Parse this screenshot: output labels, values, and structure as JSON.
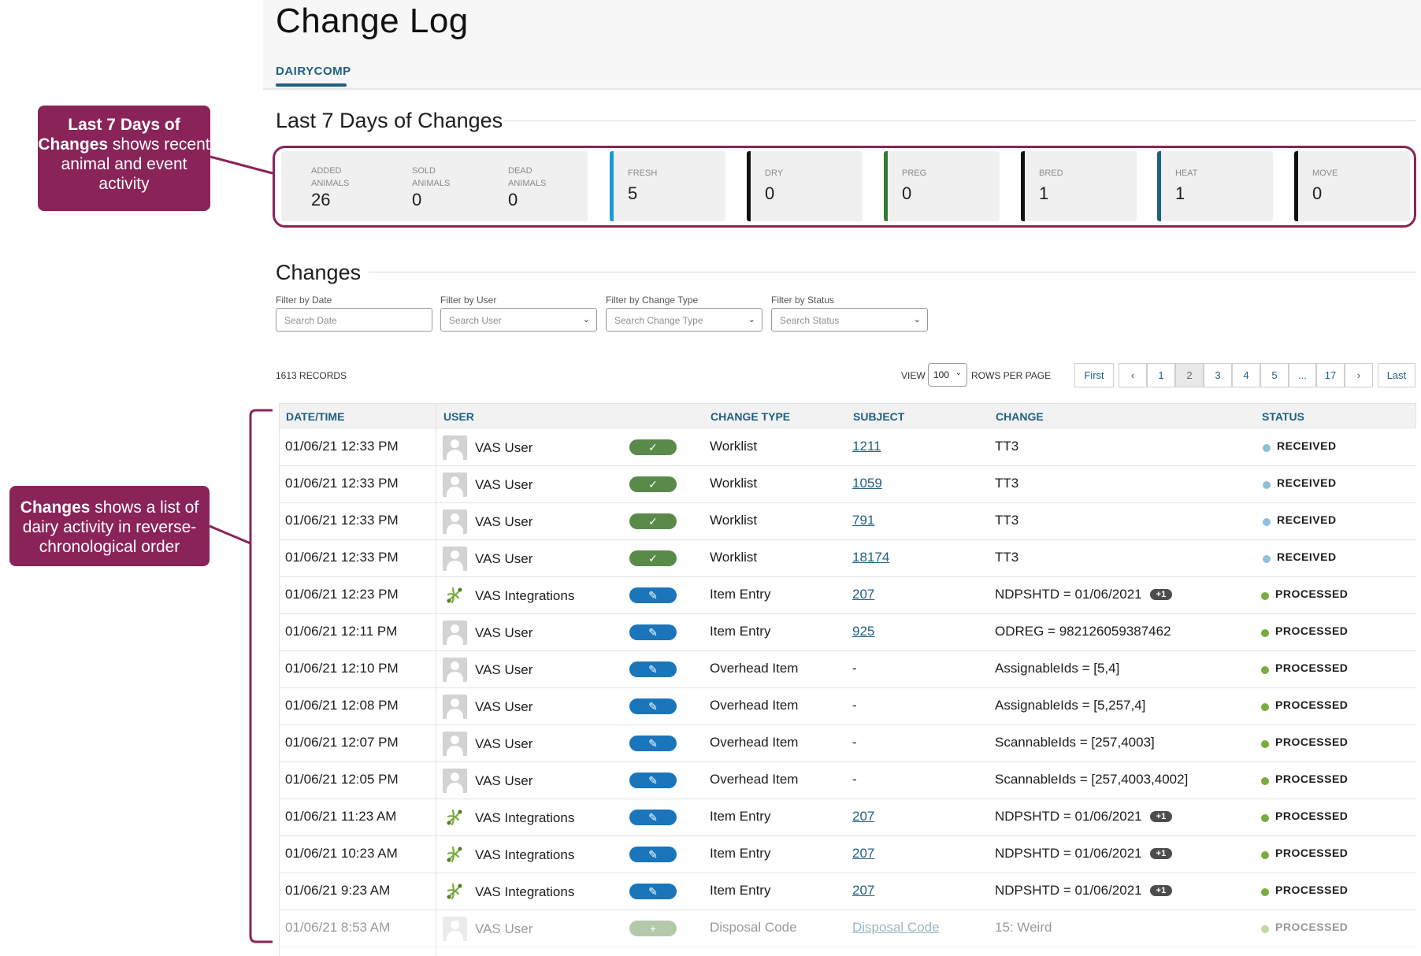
{
  "header": {
    "title": "Change Log",
    "tab": "DAIRYCOMP"
  },
  "last7": {
    "title": "Last 7 Days of Changes",
    "combined": [
      {
        "label1": "ADDED",
        "label2": "ANIMALS",
        "value": "26"
      },
      {
        "label1": "SOLD",
        "label2": "ANIMALS",
        "value": "0"
      },
      {
        "label1": "DEAD",
        "label2": "ANIMALS",
        "value": "0"
      }
    ],
    "cards": [
      {
        "label": "FRESH",
        "value": "5",
        "color": "#1a9ad6"
      },
      {
        "label": "DRY",
        "value": "0",
        "color": "#111111"
      },
      {
        "label": "PREG",
        "value": "0",
        "color": "#2e7d32"
      },
      {
        "label": "BRED",
        "value": "1",
        "color": "#111111"
      },
      {
        "label": "HEAT",
        "value": "1",
        "color": "#1f5f82"
      },
      {
        "label": "MOVE",
        "value": "0",
        "color": "#111111"
      }
    ]
  },
  "callouts": {
    "last7": {
      "bold": "Last 7 Days of Changes",
      "rest": " shows recent animal and event activity"
    },
    "changes": {
      "bold": "Changes",
      "rest": " shows a list of dairy activity in reverse-chronological order"
    }
  },
  "changes": {
    "title": "Changes",
    "filters": [
      {
        "label": "Filter by Date",
        "placeholder": "Search Date",
        "dropdown": false
      },
      {
        "label": "Filter by User",
        "placeholder": "Search User",
        "dropdown": true
      },
      {
        "label": "Filter by Change Type",
        "placeholder": "Search Change Type",
        "dropdown": true
      },
      {
        "label": "Filter by Status",
        "placeholder": "Search Status",
        "dropdown": true
      }
    ],
    "records_count": "1613",
    "records_label": "RECORDS",
    "view_label": "VIEW",
    "rows_per_page": "100",
    "rows_per_page_label": "ROWS PER PAGE",
    "pager": [
      "First",
      "‹",
      "1",
      "2",
      "3",
      "4",
      "5",
      "...",
      "17",
      "›",
      "Last"
    ],
    "active_page": "2",
    "columns": [
      "DATE/TIME",
      "USER",
      "CHANGE TYPE",
      "SUBJECT",
      "CHANGE",
      "STATUS"
    ],
    "rows": [
      {
        "datetime": "01/06/21 12:33 PM",
        "user": "VAS User",
        "user_type": "person",
        "action": "approved",
        "change_type": "Worklist",
        "subject": "1211",
        "subject_link": true,
        "change": "TT3",
        "extra": "",
        "status": "RECEIVED",
        "status_color": "#8fbfd9"
      },
      {
        "datetime": "01/06/21 12:33 PM",
        "user": "VAS User",
        "user_type": "person",
        "action": "approved",
        "change_type": "Worklist",
        "subject": "1059",
        "subject_link": true,
        "change": "TT3",
        "extra": "",
        "status": "RECEIVED",
        "status_color": "#8fbfd9"
      },
      {
        "datetime": "01/06/21 12:33 PM",
        "user": "VAS User",
        "user_type": "person",
        "action": "approved",
        "change_type": "Worklist",
        "subject": "791",
        "subject_link": true,
        "change": "TT3",
        "extra": "",
        "status": "RECEIVED",
        "status_color": "#8fbfd9"
      },
      {
        "datetime": "01/06/21 12:33 PM",
        "user": "VAS User",
        "user_type": "person",
        "action": "approved",
        "change_type": "Worklist",
        "subject": "18174",
        "subject_link": true,
        "change": "TT3",
        "extra": "",
        "status": "RECEIVED",
        "status_color": "#8fbfd9"
      },
      {
        "datetime": "01/06/21 12:23 PM",
        "user": "VAS Integrations",
        "user_type": "integration",
        "action": "edit",
        "change_type": "Item Entry",
        "subject": "207",
        "subject_link": true,
        "change": "NDPSHTD = 01/06/2021",
        "extra": "+1",
        "status": "PROCESSED",
        "status_color": "#7aab3c"
      },
      {
        "datetime": "01/06/21 12:11 PM",
        "user": "VAS User",
        "user_type": "person",
        "action": "edit",
        "change_type": "Item Entry",
        "subject": "925",
        "subject_link": true,
        "change": "ODREG = 982126059387462",
        "extra": "",
        "status": "PROCESSED",
        "status_color": "#7aab3c"
      },
      {
        "datetime": "01/06/21 12:10 PM",
        "user": "VAS User",
        "user_type": "person",
        "action": "edit",
        "change_type": "Overhead Item",
        "subject": "-",
        "subject_link": false,
        "change": "AssignableIds = [5,4]",
        "extra": "",
        "status": "PROCESSED",
        "status_color": "#7aab3c"
      },
      {
        "datetime": "01/06/21 12:08 PM",
        "user": "VAS User",
        "user_type": "person",
        "action": "edit",
        "change_type": "Overhead Item",
        "subject": "-",
        "subject_link": false,
        "change": "AssignableIds = [5,257,4]",
        "extra": "",
        "status": "PROCESSED",
        "status_color": "#7aab3c"
      },
      {
        "datetime": "01/06/21 12:07 PM",
        "user": "VAS User",
        "user_type": "person",
        "action": "edit",
        "change_type": "Overhead Item",
        "subject": "-",
        "subject_link": false,
        "change": "ScannableIds = [257,4003]",
        "extra": "",
        "status": "PROCESSED",
        "status_color": "#7aab3c"
      },
      {
        "datetime": "01/06/21 12:05 PM",
        "user": "VAS User",
        "user_type": "person",
        "action": "edit",
        "change_type": "Overhead Item",
        "subject": "-",
        "subject_link": false,
        "change": "ScannableIds = [257,4003,4002]",
        "extra": "",
        "status": "PROCESSED",
        "status_color": "#7aab3c"
      },
      {
        "datetime": "01/06/21 11:23 AM",
        "user": "VAS Integrations",
        "user_type": "integration",
        "action": "edit",
        "change_type": "Item Entry",
        "subject": "207",
        "subject_link": true,
        "change": "NDPSHTD = 01/06/2021",
        "extra": "+1",
        "status": "PROCESSED",
        "status_color": "#7aab3c"
      },
      {
        "datetime": "01/06/21 10:23 AM",
        "user": "VAS Integrations",
        "user_type": "integration",
        "action": "edit",
        "change_type": "Item Entry",
        "subject": "207",
        "subject_link": true,
        "change": "NDPSHTD = 01/06/2021",
        "extra": "+1",
        "status": "PROCESSED",
        "status_color": "#7aab3c"
      },
      {
        "datetime": "01/06/21 9:23 AM",
        "user": "VAS Integrations",
        "user_type": "integration",
        "action": "edit",
        "change_type": "Item Entry",
        "subject": "207",
        "subject_link": true,
        "change": "NDPSHTD = 01/06/2021",
        "extra": "+1",
        "status": "PROCESSED",
        "status_color": "#7aab3c"
      },
      {
        "datetime": "01/06/21 8:53 AM",
        "user": "VAS User",
        "user_type": "person",
        "action": "add",
        "change_type": "Disposal Code",
        "subject": "Disposal Code",
        "subject_link": true,
        "change": "15: Weird",
        "extra": "",
        "status": "PROCESSED",
        "status_color": "#7aab3c"
      }
    ]
  }
}
